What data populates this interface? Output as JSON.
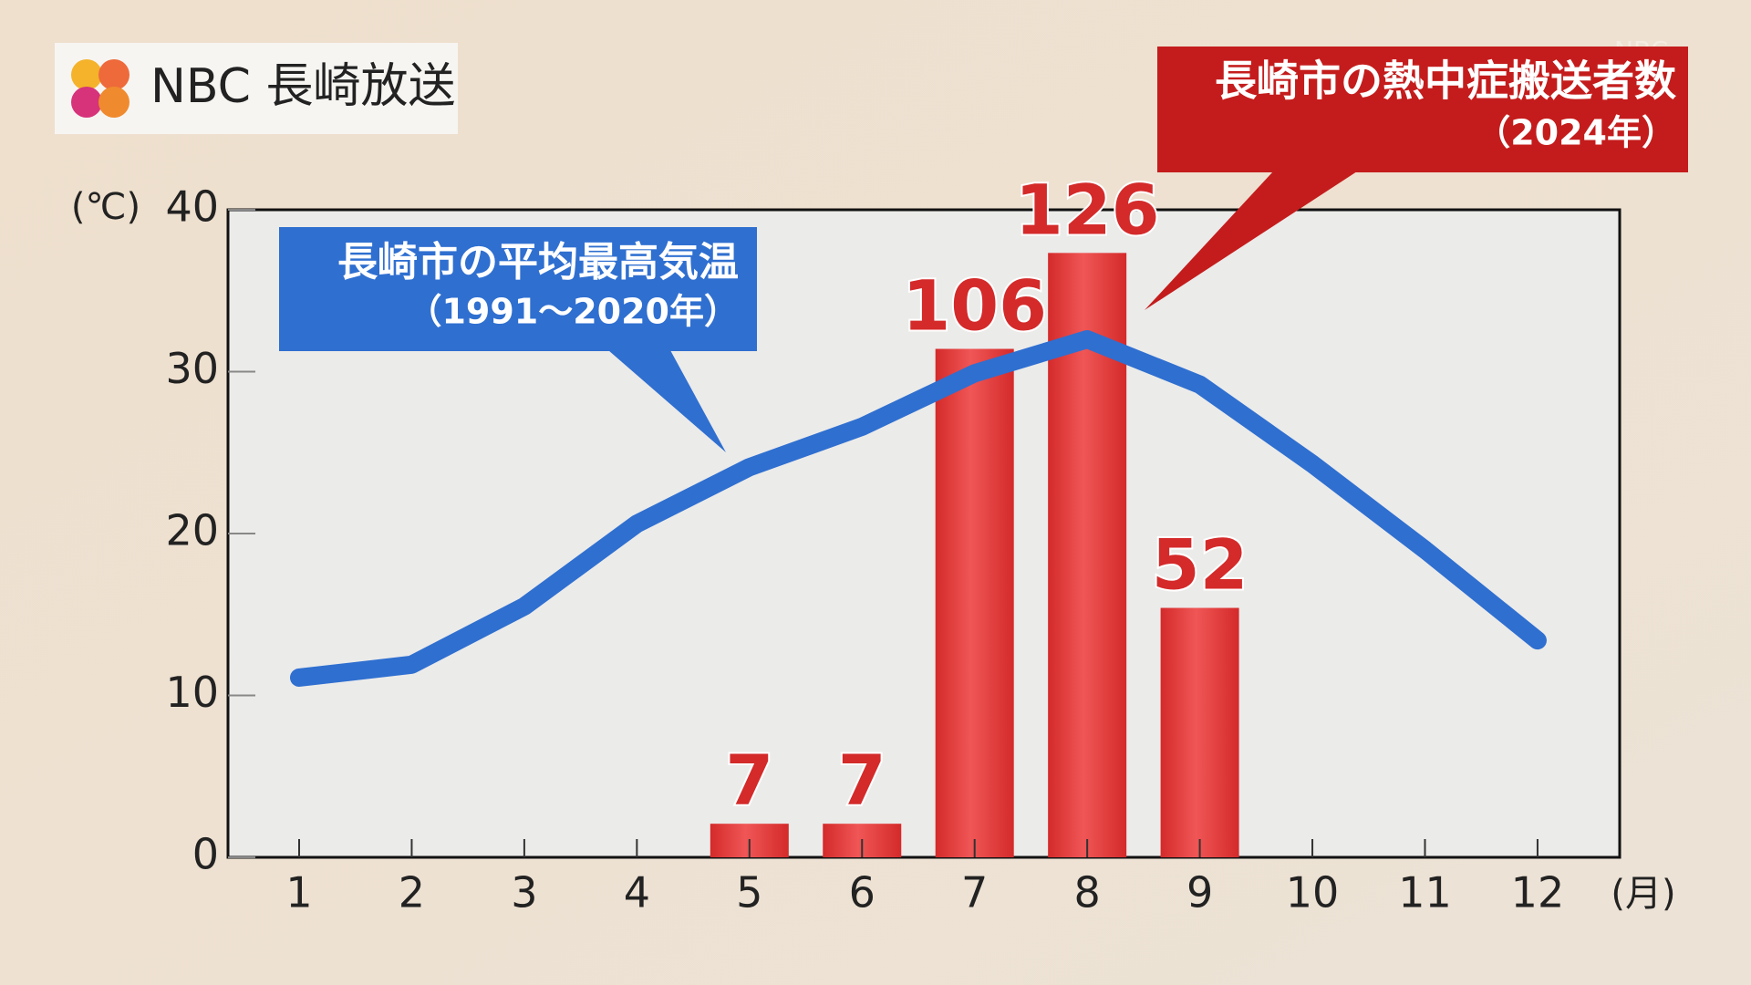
{
  "logo": "NBC 長崎放送",
  "watermark": "NBC",
  "chart_data": {
    "type": "bar",
    "y_unit": "(℃)",
    "x_unit": "(月)",
    "categories": [
      "1",
      "2",
      "3",
      "4",
      "5",
      "6",
      "7",
      "8",
      "9",
      "10",
      "11",
      "12"
    ],
    "ylim": [
      0,
      40
    ],
    "yticks": [
      0,
      10,
      20,
      30,
      40
    ],
    "y2lim": [
      0,
      135
    ],
    "series": [
      {
        "name": "長崎市の熱中症搬送者数",
        "period": "（2024年）",
        "type": "bar",
        "axis": "y2",
        "color": "#d42a2a",
        "values": [
          null,
          null,
          null,
          null,
          7,
          7,
          106,
          126,
          52,
          null,
          null,
          null
        ]
      },
      {
        "name": "長崎市の平均最高気温",
        "period": "（1991～2020年）",
        "type": "line",
        "color": "#2f6fd0",
        "values": [
          11.1,
          11.9,
          15.5,
          20.6,
          24.1,
          26.6,
          29.9,
          32.0,
          29.2,
          24.3,
          19.0,
          13.4
        ]
      }
    ]
  }
}
